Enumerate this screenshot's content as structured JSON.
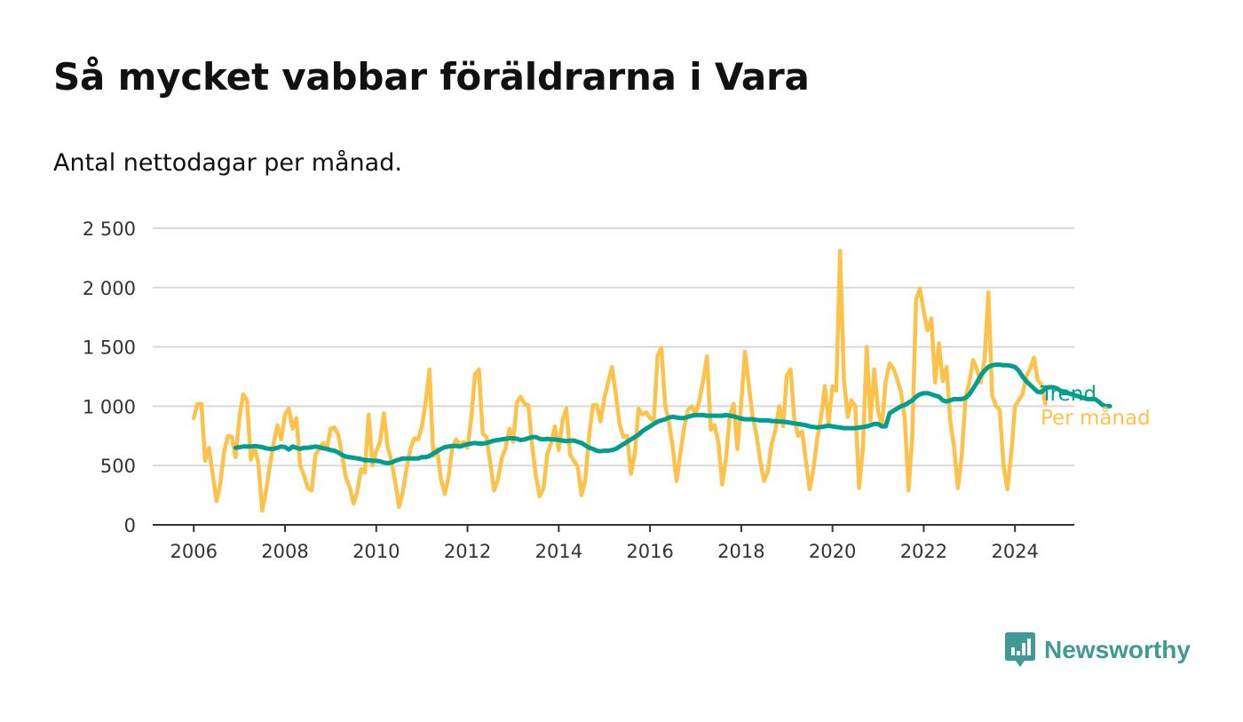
{
  "title": "Så mycket vabbar föräldrarna i Vara",
  "subtitle": "Antal nettodagar per månad.",
  "brand": {
    "name": "Newsworthy",
    "icon": "newsworthy-logo-icon",
    "color": "#3e9a92"
  },
  "colors": {
    "trend": "#009e8e",
    "monthly": "#fcc24a",
    "grid": "#d9d9d9",
    "axis": "#333333"
  },
  "chart_data": {
    "type": "line",
    "title": "Så mycket vabbar föräldrarna i Vara",
    "subtitle": "Antal nettodagar per månad.",
    "xlabel": "",
    "ylabel": "",
    "xlim": [
      2005.1,
      2025.3
    ],
    "ylim": [
      0,
      2500
    ],
    "y_ticks": [
      0,
      500,
      1000,
      1500,
      2000,
      2500
    ],
    "y_tick_labels": [
      "0",
      "500",
      "1 000",
      "1 500",
      "2 000",
      "2 500"
    ],
    "x_ticks": [
      2006,
      2008,
      2010,
      2012,
      2014,
      2016,
      2018,
      2020,
      2022,
      2024
    ],
    "x_tick_labels": [
      "2006",
      "2008",
      "2010",
      "2012",
      "2014",
      "2016",
      "2018",
      "2020",
      "2022",
      "2024"
    ],
    "grid": true,
    "legend": "inline labels at line ends (right)",
    "series": [
      {
        "name": "Per månad",
        "key": "monthly",
        "start": 2006.0,
        "step": 0.08333,
        "values": [
          900,
          1020,
          1020,
          540,
          650,
          420,
          200,
          350,
          620,
          750,
          740,
          570,
          900,
          1100,
          1050,
          550,
          650,
          520,
          120,
          280,
          500,
          690,
          840,
          720,
          930,
          980,
          810,
          900,
          500,
          420,
          310,
          290,
          590,
          640,
          690,
          640,
          810,
          820,
          760,
          590,
          400,
          320,
          180,
          280,
          470,
          440,
          930,
          500,
          620,
          700,
          940,
          660,
          540,
          360,
          150,
          280,
          480,
          640,
          730,
          720,
          830,
          1030,
          1310,
          580,
          640,
          390,
          260,
          400,
          650,
          720,
          670,
          700,
          650,
          900,
          1270,
          1310,
          770,
          740,
          520,
          290,
          380,
          560,
          650,
          810,
          700,
          1030,
          1080,
          1020,
          1010,
          670,
          410,
          240,
          310,
          600,
          690,
          830,
          630,
          880,
          980,
          590,
          540,
          490,
          250,
          380,
          760,
          1010,
          1010,
          870,
          1070,
          1200,
          1330,
          1100,
          850,
          740,
          750,
          430,
          600,
          980,
          930,
          950,
          900,
          880,
          1430,
          1490,
          1010,
          860,
          650,
          370,
          600,
          820,
          970,
          1000,
          930,
          1050,
          1220,
          1420,
          800,
          840,
          690,
          340,
          560,
          920,
          1020,
          640,
          1030,
          1460,
          1180,
          910,
          760,
          540,
          370,
          450,
          680,
          800,
          1000,
          830,
          1260,
          1310,
          880,
          750,
          790,
          540,
          300,
          470,
          730,
          910,
          1170,
          860,
          1170,
          1130,
          2310,
          1230,
          910,
          1050,
          1000,
          310,
          640,
          1500,
          880,
          1310,
          960,
          840,
          1210,
          1360,
          1320,
          1230,
          1120,
          900,
          290,
          740,
          1900,
          1990,
          1800,
          1640,
          1740,
          1200,
          1530,
          1210,
          1330,
          870,
          650,
          310,
          580,
          1070,
          1200,
          1390,
          1310,
          1200,
          1390,
          1960,
          1090,
          1000,
          970,
          500,
          300,
          590,
          1000,
          1050,
          1100,
          1250,
          1320,
          1410,
          1220,
          1180,
          1020
        ]
      },
      {
        "name": "Trend",
        "key": "trend",
        "start": 2006.9167,
        "step": 0.08333,
        "values": [
          650,
          655,
          660,
          660,
          660,
          665,
          660,
          655,
          645,
          640,
          640,
          650,
          660,
          655,
          635,
          660,
          650,
          640,
          650,
          650,
          655,
          660,
          655,
          645,
          640,
          630,
          625,
          610,
          590,
          575,
          570,
          565,
          560,
          555,
          545,
          545,
          540,
          540,
          535,
          525,
          520,
          525,
          540,
          550,
          560,
          560,
          560,
          560,
          560,
          570,
          570,
          580,
          600,
          620,
          640,
          655,
          660,
          665,
          665,
          660,
          670,
          680,
          685,
          690,
          685,
          685,
          690,
          700,
          710,
          715,
          720,
          725,
          730,
          730,
          725,
          715,
          720,
          730,
          740,
          740,
          725,
          720,
          725,
          720,
          720,
          715,
          710,
          705,
          710,
          710,
          700,
          690,
          670,
          650,
          640,
          625,
          620,
          625,
          625,
          630,
          640,
          660,
          680,
          700,
          720,
          740,
          760,
          790,
          810,
          830,
          850,
          870,
          880,
          890,
          905,
          910,
          905,
          900,
          900,
          910,
          920,
          925,
          925,
          925,
          920,
          920,
          920,
          920,
          920,
          925,
          920,
          915,
          905,
          895,
          890,
          890,
          890,
          885,
          880,
          880,
          880,
          875,
          875,
          870,
          870,
          865,
          860,
          855,
          850,
          845,
          840,
          830,
          825,
          820,
          825,
          830,
          835,
          830,
          825,
          820,
          815,
          815,
          815,
          815,
          820,
          825,
          830,
          840,
          850,
          850,
          830,
          830,
          940,
          960,
          980,
          1000,
          1010,
          1030,
          1050,
          1080,
          1100,
          1110,
          1110,
          1100,
          1090,
          1080,
          1050,
          1040,
          1050,
          1060,
          1060,
          1060,
          1070,
          1100,
          1150,
          1200,
          1260,
          1300,
          1330,
          1345,
          1350,
          1350,
          1345,
          1345,
          1340,
          1330,
          1300,
          1250,
          1210,
          1180,
          1150,
          1120,
          1120,
          1150,
          1160,
          1160,
          1150,
          1130,
          1120,
          1110,
          1100,
          1090,
          1080,
          1070,
          1060,
          1060,
          1060,
          1040,
          1010,
          1000,
          1000
        ]
      }
    ]
  }
}
